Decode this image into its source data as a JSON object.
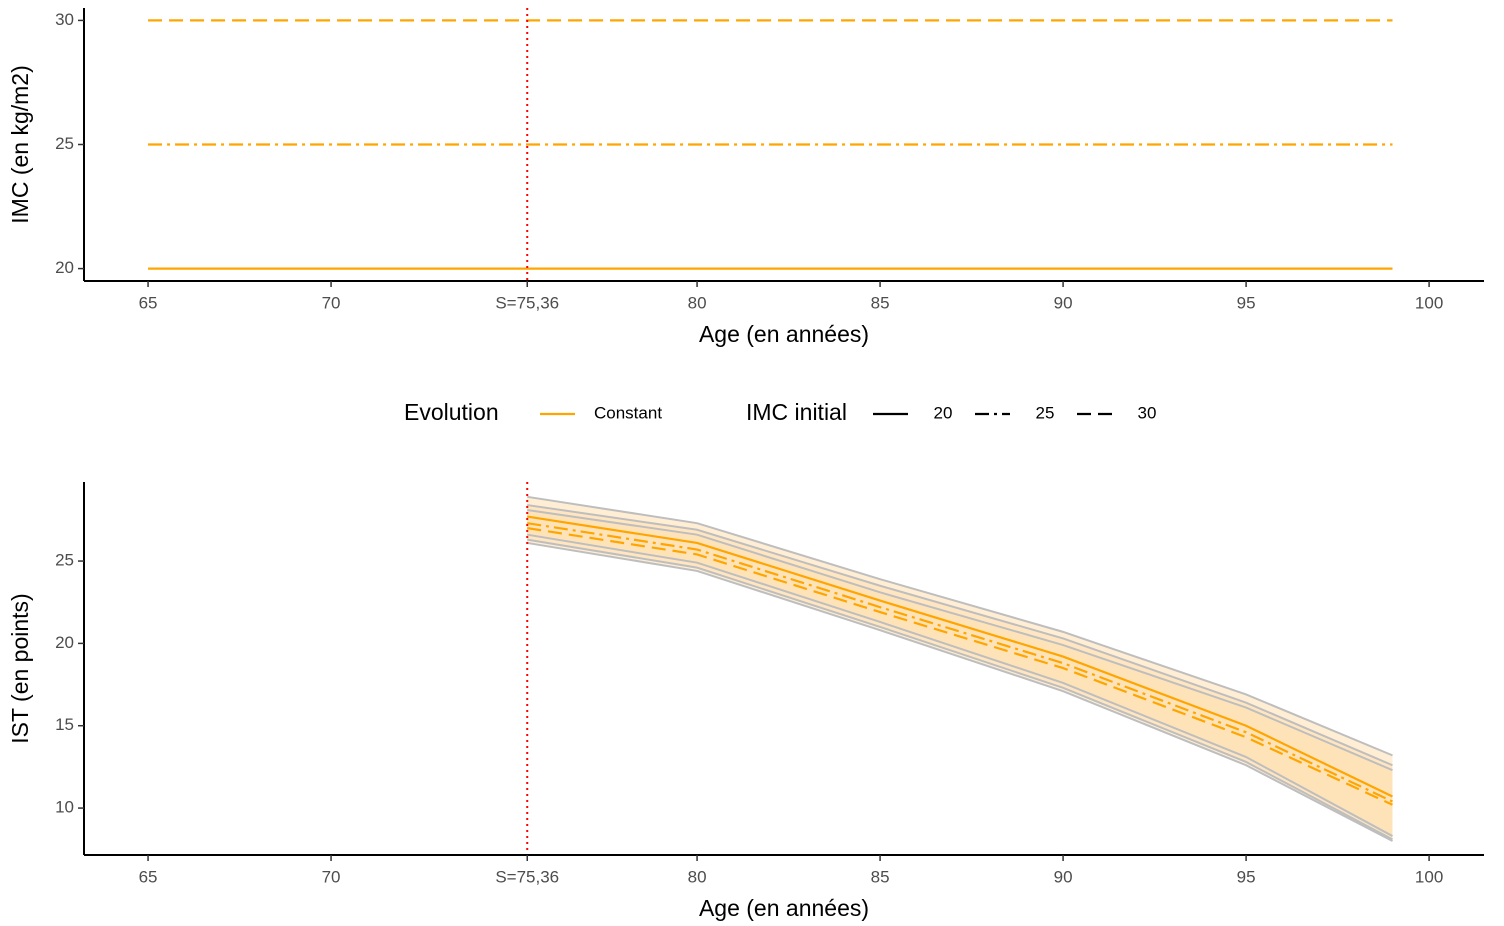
{
  "legend": {
    "color_title": "Evolution",
    "color_labels": [
      "Constant"
    ],
    "color": "#FFA500",
    "linetype_title": "IMC initial"
  },
  "chart_data": [
    {
      "type": "line",
      "x_label": "Age (en années)",
      "y_label": "IMC (en kg/m2)",
      "xlim": [
        63.25,
        101.5
      ],
      "xticks": [
        65,
        70,
        {
          "value": 75.36,
          "label": "S=75,36"
        },
        80,
        85,
        90,
        95,
        100
      ],
      "ylim": [
        19.5,
        30.5
      ],
      "yticks": [
        20,
        25,
        30
      ],
      "vline": {
        "value": 75.36,
        "color": "#FF0000"
      },
      "series": [
        {
          "name": "20",
          "linetype": "solid",
          "color": "#FFA500",
          "x": [
            65,
            99
          ],
          "values": [
            20,
            20
          ]
        },
        {
          "name": "25",
          "linetype": "dashdot",
          "color": "#FFA500",
          "x": [
            65,
            99
          ],
          "values": [
            25,
            25
          ]
        },
        {
          "name": "30",
          "linetype": "dashed",
          "color": "#FFA500",
          "x": [
            65,
            99
          ],
          "values": [
            30,
            30
          ]
        }
      ]
    },
    {
      "type": "line",
      "x_label": "Age (en années)",
      "y_label": "IST (en points)",
      "xlim": [
        63.25,
        101.5
      ],
      "xticks": [
        65,
        70,
        {
          "value": 75.36,
          "label": "S=75,36"
        },
        80,
        85,
        90,
        95,
        100
      ],
      "ylim": [
        7.15,
        29.8
      ],
      "yticks": [
        10,
        15,
        20,
        25
      ],
      "vline": {
        "value": 75.36,
        "color": "#FF0000"
      },
      "band_fill": "#FFE0B0",
      "band_stroke": "#BEBEBE",
      "series": [
        {
          "linetype": "solid",
          "color": "#FFA500",
          "x": [
            75.36,
            80,
            85,
            90,
            95,
            99
          ],
          "values": [
            27.7,
            26.1,
            22.6,
            19.2,
            15.0,
            10.7
          ],
          "lower": [
            26.6,
            24.9,
            21.3,
            17.6,
            13.1,
            8.3
          ],
          "upper": [
            28.9,
            27.3,
            23.9,
            20.7,
            16.9,
            13.2
          ]
        },
        {
          "linetype": "dashdot",
          "color": "#FFA500",
          "x": [
            75.36,
            80,
            85,
            90,
            95,
            99
          ],
          "values": [
            27.3,
            25.7,
            22.2,
            18.8,
            14.6,
            10.4
          ],
          "lower": [
            26.3,
            24.6,
            21.0,
            17.3,
            12.8,
            8.1
          ],
          "upper": [
            28.4,
            26.9,
            23.5,
            20.3,
            16.4,
            12.6
          ]
        },
        {
          "linetype": "dashed",
          "color": "#FFA500",
          "x": [
            75.36,
            80,
            85,
            90,
            95,
            99
          ],
          "values": [
            27.0,
            25.4,
            21.9,
            18.5,
            14.3,
            10.2
          ],
          "lower": [
            26.1,
            24.4,
            20.8,
            17.1,
            12.6,
            8.0
          ],
          "upper": [
            28.1,
            26.6,
            23.1,
            19.9,
            16.1,
            12.3
          ]
        }
      ]
    }
  ]
}
